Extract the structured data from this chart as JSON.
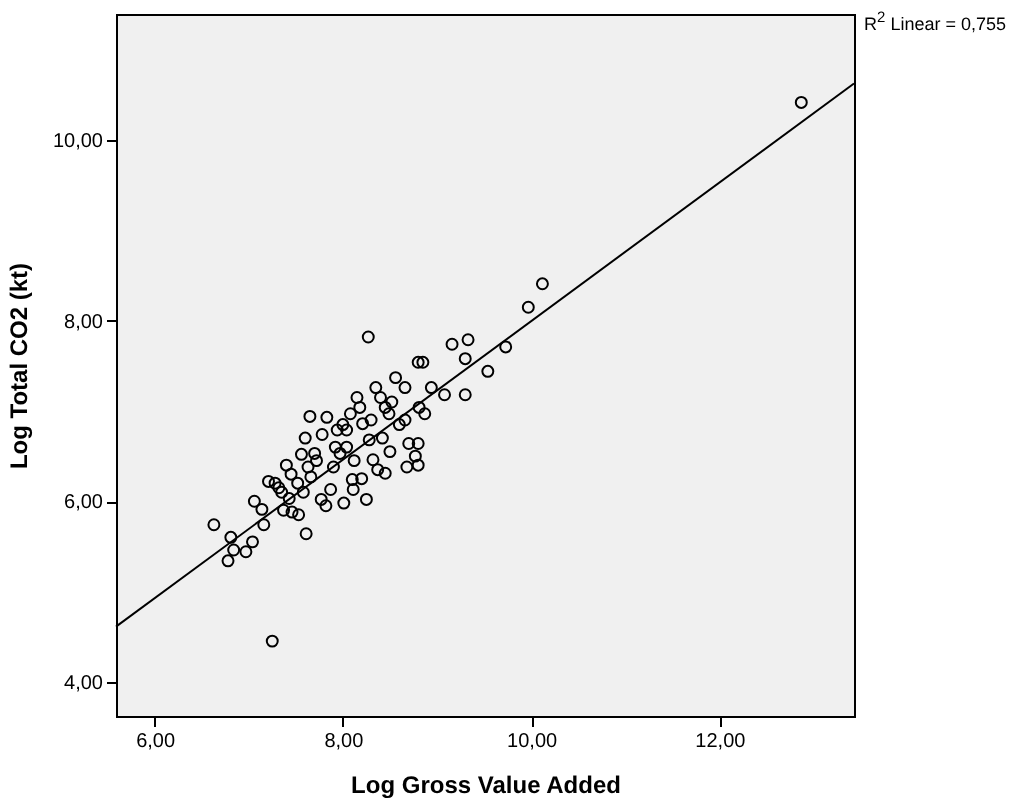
{
  "chart_data": {
    "type": "scatter",
    "xlabel": "Log Gross Value Added",
    "ylabel": "Log Total CO2 (kt)",
    "annotations": [
      "R$^{2}$ Linear = 0,755"
    ],
    "xlim": [
      5.59,
      13.43
    ],
    "ylim": [
      3.62,
      11.4
    ],
    "xticks": [
      {
        "value": 6,
        "label": "6,00"
      },
      {
        "value": 8,
        "label": "8,00"
      },
      {
        "value": 10,
        "label": "10,00"
      },
      {
        "value": 12,
        "label": "12,00"
      }
    ],
    "yticks": [
      {
        "value": 4,
        "label": "4,00"
      },
      {
        "value": 6,
        "label": "6,00"
      },
      {
        "value": 8,
        "label": "8,00"
      },
      {
        "value": 10,
        "label": "10,00"
      }
    ],
    "marker": "circle",
    "grid": false,
    "series": [
      {
        "color": "#000000",
        "x": [
          6.63,
          6.81,
          6.78,
          6.84,
          6.97,
          7.04,
          7.16,
          7.06,
          7.14,
          7.25,
          7.61,
          7.21,
          7.28,
          7.32,
          7.37,
          7.46,
          7.53,
          7.43,
          7.52,
          7.56,
          7.65,
          7.83,
          7.78,
          7.7,
          7.63,
          7.66,
          7.77,
          7.82,
          7.87,
          8.01,
          7.9,
          7.97,
          7.94,
          8.08,
          8.04,
          8.04,
          8.1,
          8.11,
          8.25,
          8.27,
          8.15,
          8.18,
          8.21,
          8.28,
          8.32,
          8.37,
          8.45,
          8.35,
          8.4,
          8.45,
          8.49,
          8.56,
          8.66,
          8.66,
          8.7,
          8.8,
          8.68,
          8.8,
          8.77,
          8.81,
          8.87,
          8.8,
          8.85,
          8.94,
          9.08,
          9.16,
          9.33,
          9.3,
          9.3,
          9.54,
          9.73,
          9.97,
          10.12,
          12.87,
          7.35,
          7.45,
          7.58,
          7.72,
          7.92,
          8.0,
          8.12,
          8.3,
          8.42,
          8.52,
          8.6,
          7.4,
          7.6,
          8.2,
          8.5
        ],
        "values": [
          5.74,
          5.6,
          5.34,
          5.46,
          5.44,
          5.55,
          5.74,
          6.0,
          5.91,
          4.45,
          5.64,
          6.22,
          6.2,
          6.15,
          5.9,
          5.88,
          5.85,
          6.03,
          6.2,
          6.52,
          6.94,
          6.93,
          6.74,
          6.53,
          6.38,
          6.27,
          6.02,
          5.95,
          6.13,
          5.98,
          6.38,
          6.53,
          6.79,
          6.97,
          6.79,
          6.6,
          6.24,
          6.13,
          6.02,
          7.82,
          7.15,
          7.04,
          6.86,
          6.68,
          6.46,
          6.35,
          6.31,
          7.26,
          7.15,
          7.04,
          6.97,
          7.37,
          7.26,
          6.9,
          6.64,
          6.64,
          6.38,
          6.4,
          6.5,
          7.04,
          6.97,
          7.54,
          7.54,
          7.26,
          7.18,
          7.74,
          7.79,
          7.58,
          7.18,
          7.44,
          7.71,
          8.15,
          8.41,
          10.42,
          6.1,
          6.3,
          6.1,
          6.45,
          6.6,
          6.85,
          6.45,
          6.9,
          6.7,
          7.1,
          6.85,
          6.4,
          6.7,
          6.25,
          6.55
        ]
      },
      {
        "type": "line",
        "marker": "none",
        "color": "#000000",
        "x": [
          5.59,
          13.43
        ],
        "values": [
          4.61,
          10.63
        ]
      }
    ]
  }
}
